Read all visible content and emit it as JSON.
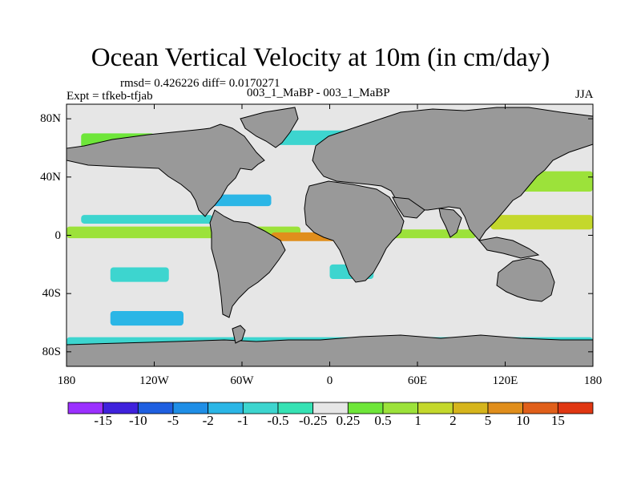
{
  "title": "Ocean Vertical Velocity at 10m (in cm/day)",
  "stats_line": "rmsd= 0.426226 diff= 0.0170271",
  "experiment_line": "Expt = tfkeb-tfjab",
  "comparison_line": "003_1_MaBP - 003_1_MaBP",
  "season": "JJA",
  "map": {
    "projection": "cylindrical equidistant",
    "lon_range": [
      -180,
      180
    ],
    "lat_range": [
      -90,
      90
    ],
    "land_color": "#999999",
    "background_color": "#e6e6e6",
    "lat_ticks": [
      {
        "value": 80,
        "label": "80N"
      },
      {
        "value": 40,
        "label": "40N"
      },
      {
        "value": 0,
        "label": "0"
      },
      {
        "value": -40,
        "label": "40S"
      },
      {
        "value": -80,
        "label": "80S"
      }
    ],
    "lon_ticks": [
      {
        "value": -180,
        "label": "180"
      },
      {
        "value": -120,
        "label": "120W"
      },
      {
        "value": -60,
        "label": "60W"
      },
      {
        "value": 0,
        "label": "0"
      },
      {
        "value": 60,
        "label": "60E"
      },
      {
        "value": 120,
        "label": "120E"
      },
      {
        "value": 180,
        "label": "180"
      }
    ]
  },
  "colorbar": {
    "colors": [
      "#9b30ff",
      "#3f22dc",
      "#1f5fe0",
      "#1f8ee6",
      "#2bb6e6",
      "#3dd5cf",
      "#36e2b4",
      "#e6e6e6",
      "#6ee639",
      "#9ce23a",
      "#c4d82c",
      "#d6b51c",
      "#e08e1c",
      "#e05f1a",
      "#e03712"
    ],
    "labels": [
      "-15",
      "-10",
      "-5",
      "-2",
      "-1",
      "-0.5",
      "-0.25",
      "0.25",
      "0.5",
      "1",
      "2",
      "5",
      "10",
      "15"
    ]
  },
  "field_bands": [
    {
      "lon_min": -180,
      "lon_max": -20,
      "lat_min": -2,
      "lat_max": 6,
      "bin": 9
    },
    {
      "lon_min": -40,
      "lon_max": 15,
      "lat_min": -4,
      "lat_max": 2,
      "bin": 12
    },
    {
      "lon_min": 40,
      "lon_max": 100,
      "lat_min": -2,
      "lat_max": 4,
      "bin": 9
    },
    {
      "lon_min": 110,
      "lon_max": 180,
      "lat_min": 4,
      "lat_max": 14,
      "bin": 10
    },
    {
      "lon_min": -170,
      "lon_max": -80,
      "lat_min": 8,
      "lat_max": 14,
      "bin": 5
    },
    {
      "lon_min": -90,
      "lon_max": -40,
      "lat_min": 20,
      "lat_max": 28,
      "bin": 4
    },
    {
      "lon_min": 120,
      "lon_max": 180,
      "lat_min": 30,
      "lat_max": 44,
      "bin": 9
    },
    {
      "lon_min": -170,
      "lon_max": -120,
      "lat_min": 60,
      "lat_max": 70,
      "bin": 8
    },
    {
      "lon_min": -40,
      "lon_max": 40,
      "lat_min": 62,
      "lat_max": 72,
      "bin": 5
    },
    {
      "lon_min": -150,
      "lon_max": -100,
      "lat_min": -62,
      "lat_max": -52,
      "bin": 4
    },
    {
      "lon_min": -180,
      "lon_max": 180,
      "lat_min": -76,
      "lat_max": -70,
      "bin": 5
    },
    {
      "lon_min": -150,
      "lon_max": -110,
      "lat_min": -32,
      "lat_max": -22,
      "bin": 5
    },
    {
      "lon_min": 0,
      "lon_max": 30,
      "lat_min": -30,
      "lat_max": -20,
      "bin": 5
    }
  ]
}
